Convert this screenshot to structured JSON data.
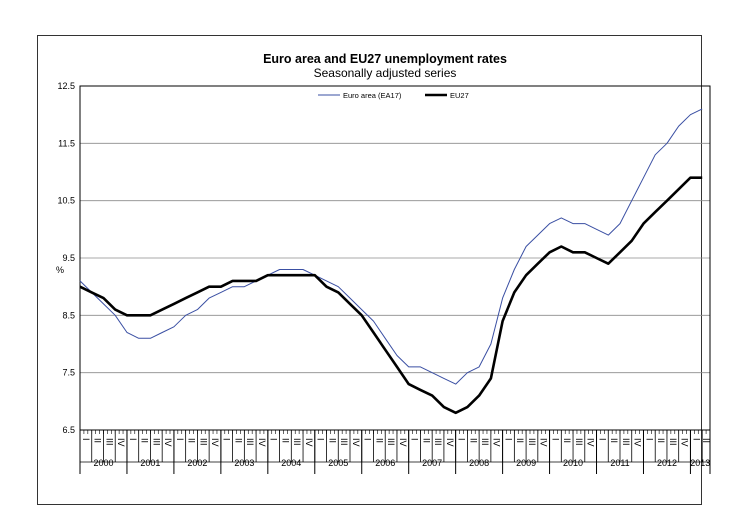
{
  "chart_data": {
    "type": "line",
    "title": "Euro area and EU27 unemployment rates",
    "subtitle": "Seasonally adjusted series",
    "ylabel": "%",
    "ylim": [
      6.5,
      12.5
    ],
    "y_ticks": [
      "12.5",
      "11.5",
      "10.5",
      "9.5",
      "8.5",
      "7.5",
      "6.5"
    ],
    "grid": true,
    "legend_position": "top-center",
    "quarter_labels": [
      "I",
      "II",
      "III",
      "IV"
    ],
    "years": [
      "2000",
      "2001",
      "2002",
      "2003",
      "2004",
      "2005",
      "2006",
      "2007",
      "2008",
      "2009",
      "2010",
      "2011",
      "2012",
      "2013"
    ],
    "x_start": "2000-01",
    "x_end": "2013-05",
    "series": [
      {
        "name": "Euro area (EA17)",
        "color": "#3a4fa3",
        "points": [
          [
            2000.0,
            9.1
          ],
          [
            2000.25,
            8.9
          ],
          [
            2000.5,
            8.7
          ],
          [
            2000.75,
            8.5
          ],
          [
            2001.0,
            8.2
          ],
          [
            2001.25,
            8.1
          ],
          [
            2001.5,
            8.1
          ],
          [
            2001.75,
            8.2
          ],
          [
            2002.0,
            8.3
          ],
          [
            2002.25,
            8.5
          ],
          [
            2002.5,
            8.6
          ],
          [
            2002.75,
            8.8
          ],
          [
            2003.0,
            8.9
          ],
          [
            2003.25,
            9.0
          ],
          [
            2003.5,
            9.0
          ],
          [
            2003.75,
            9.1
          ],
          [
            2004.0,
            9.2
          ],
          [
            2004.25,
            9.3
          ],
          [
            2004.5,
            9.3
          ],
          [
            2004.75,
            9.3
          ],
          [
            2005.0,
            9.2
          ],
          [
            2005.25,
            9.1
          ],
          [
            2005.5,
            9.0
          ],
          [
            2005.75,
            8.8
          ],
          [
            2006.0,
            8.6
          ],
          [
            2006.25,
            8.4
          ],
          [
            2006.5,
            8.1
          ],
          [
            2006.75,
            7.8
          ],
          [
            2007.0,
            7.6
          ],
          [
            2007.25,
            7.6
          ],
          [
            2007.5,
            7.5
          ],
          [
            2007.75,
            7.4
          ],
          [
            2008.0,
            7.3
          ],
          [
            2008.25,
            7.5
          ],
          [
            2008.5,
            7.6
          ],
          [
            2008.75,
            8.0
          ],
          [
            2009.0,
            8.8
          ],
          [
            2009.25,
            9.3
          ],
          [
            2009.5,
            9.7
          ],
          [
            2009.75,
            9.9
          ],
          [
            2010.0,
            10.1
          ],
          [
            2010.25,
            10.2
          ],
          [
            2010.5,
            10.1
          ],
          [
            2010.75,
            10.1
          ],
          [
            2011.0,
            10.0
          ],
          [
            2011.25,
            9.9
          ],
          [
            2011.5,
            10.1
          ],
          [
            2011.75,
            10.5
          ],
          [
            2012.0,
            10.9
          ],
          [
            2012.25,
            11.3
          ],
          [
            2012.5,
            11.5
          ],
          [
            2012.75,
            11.8
          ],
          [
            2013.0,
            12.0
          ],
          [
            2013.25,
            12.1
          ]
        ]
      },
      {
        "name": "EU27",
        "color": "#000000",
        "points": [
          [
            2000.0,
            9.0
          ],
          [
            2000.25,
            8.9
          ],
          [
            2000.5,
            8.8
          ],
          [
            2000.75,
            8.6
          ],
          [
            2001.0,
            8.5
          ],
          [
            2001.25,
            8.5
          ],
          [
            2001.5,
            8.5
          ],
          [
            2001.75,
            8.6
          ],
          [
            2002.0,
            8.7
          ],
          [
            2002.25,
            8.8
          ],
          [
            2002.5,
            8.9
          ],
          [
            2002.75,
            9.0
          ],
          [
            2003.0,
            9.0
          ],
          [
            2003.25,
            9.1
          ],
          [
            2003.5,
            9.1
          ],
          [
            2003.75,
            9.1
          ],
          [
            2004.0,
            9.2
          ],
          [
            2004.25,
            9.2
          ],
          [
            2004.5,
            9.2
          ],
          [
            2004.75,
            9.2
          ],
          [
            2005.0,
            9.2
          ],
          [
            2005.25,
            9.0
          ],
          [
            2005.5,
            8.9
          ],
          [
            2005.75,
            8.7
          ],
          [
            2006.0,
            8.5
          ],
          [
            2006.25,
            8.2
          ],
          [
            2006.5,
            7.9
          ],
          [
            2006.75,
            7.6
          ],
          [
            2007.0,
            7.3
          ],
          [
            2007.25,
            7.2
          ],
          [
            2007.5,
            7.1
          ],
          [
            2007.75,
            6.9
          ],
          [
            2008.0,
            6.8
          ],
          [
            2008.25,
            6.9
          ],
          [
            2008.5,
            7.1
          ],
          [
            2008.75,
            7.4
          ],
          [
            2009.0,
            8.4
          ],
          [
            2009.25,
            8.9
          ],
          [
            2009.5,
            9.2
          ],
          [
            2009.75,
            9.4
          ],
          [
            2010.0,
            9.6
          ],
          [
            2010.25,
            9.7
          ],
          [
            2010.5,
            9.6
          ],
          [
            2010.75,
            9.6
          ],
          [
            2011.0,
            9.5
          ],
          [
            2011.25,
            9.4
          ],
          [
            2011.5,
            9.6
          ],
          [
            2011.75,
            9.8
          ],
          [
            2012.0,
            10.1
          ],
          [
            2012.25,
            10.3
          ],
          [
            2012.5,
            10.5
          ],
          [
            2012.75,
            10.7
          ],
          [
            2013.0,
            10.9
          ],
          [
            2013.25,
            10.9
          ]
        ]
      }
    ]
  }
}
